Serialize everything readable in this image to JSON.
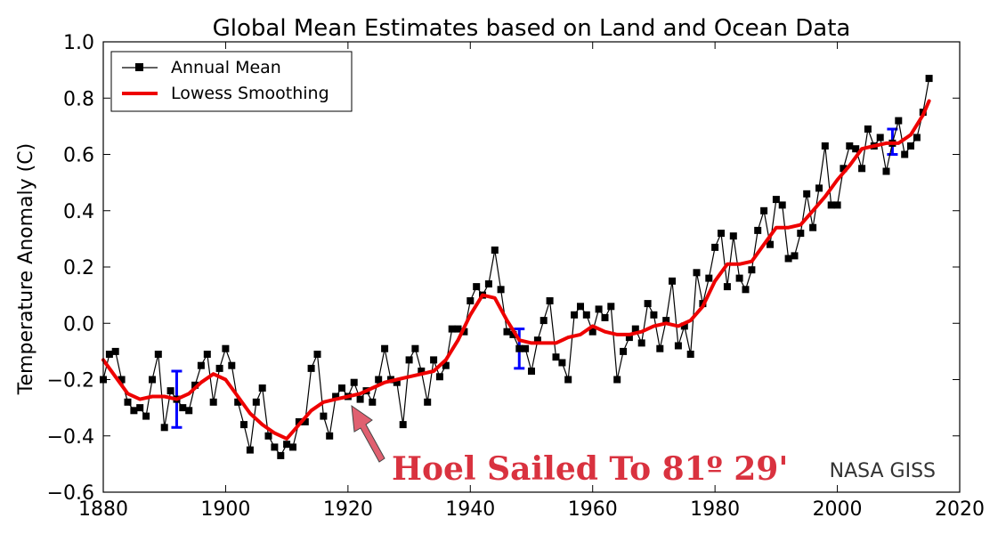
{
  "chart_data": {
    "type": "line",
    "title": "Global Mean Estimates based on Land and Ocean Data",
    "xlabel": "",
    "ylabel": "Temperature Anomaly (C)",
    "xlim": [
      1880,
      2020
    ],
    "ylim": [
      -0.6,
      1.0
    ],
    "x_ticks": [
      1880,
      1900,
      1920,
      1940,
      1960,
      1980,
      2000,
      2020
    ],
    "y_ticks": [
      -0.6,
      -0.4,
      -0.2,
      0.0,
      0.2,
      0.4,
      0.6,
      0.8,
      1.0
    ],
    "x_tick_labels": [
      "1880",
      "1900",
      "1920",
      "1940",
      "1960",
      "1980",
      "2000",
      "2020"
    ],
    "y_tick_labels": [
      "−0.6",
      "−0.4",
      "−0.2",
      "0.0",
      "0.2",
      "0.4",
      "0.6",
      "0.8",
      "1.0"
    ],
    "grid": false,
    "legend_placement": "top-left",
    "series": [
      {
        "name": "Annual Mean",
        "color": "#000000",
        "marker": "square",
        "x": [
          1880,
          1881,
          1882,
          1883,
          1884,
          1885,
          1886,
          1887,
          1888,
          1889,
          1890,
          1891,
          1892,
          1893,
          1894,
          1895,
          1896,
          1897,
          1898,
          1899,
          1900,
          1901,
          1902,
          1903,
          1904,
          1905,
          1906,
          1907,
          1908,
          1909,
          1910,
          1911,
          1912,
          1913,
          1914,
          1915,
          1916,
          1917,
          1918,
          1919,
          1920,
          1921,
          1922,
          1923,
          1924,
          1925,
          1926,
          1927,
          1928,
          1929,
          1930,
          1931,
          1932,
          1933,
          1934,
          1935,
          1936,
          1937,
          1938,
          1939,
          1940,
          1941,
          1942,
          1943,
          1944,
          1945,
          1946,
          1947,
          1948,
          1949,
          1950,
          1951,
          1952,
          1953,
          1954,
          1955,
          1956,
          1957,
          1958,
          1959,
          1960,
          1961,
          1962,
          1963,
          1964,
          1965,
          1966,
          1967,
          1968,
          1969,
          1970,
          1971,
          1972,
          1973,
          1974,
          1975,
          1976,
          1977,
          1978,
          1979,
          1980,
          1981,
          1982,
          1983,
          1984,
          1985,
          1986,
          1987,
          1988,
          1989,
          1990,
          1991,
          1992,
          1993,
          1994,
          1995,
          1996,
          1997,
          1998,
          1999,
          2000,
          2001,
          2002,
          2003,
          2004,
          2005,
          2006,
          2007,
          2008,
          2009,
          2010,
          2011,
          2012,
          2013,
          2014,
          2015
        ],
        "y": [
          -0.2,
          -0.11,
          -0.1,
          -0.2,
          -0.28,
          -0.31,
          -0.3,
          -0.33,
          -0.2,
          -0.11,
          -0.37,
          -0.24,
          -0.27,
          -0.3,
          -0.31,
          -0.22,
          -0.15,
          -0.11,
          -0.28,
          -0.16,
          -0.09,
          -0.15,
          -0.28,
          -0.36,
          -0.45,
          -0.28,
          -0.23,
          -0.4,
          -0.44,
          -0.47,
          -0.43,
          -0.44,
          -0.35,
          -0.35,
          -0.16,
          -0.11,
          -0.33,
          -0.4,
          -0.26,
          -0.23,
          -0.26,
          -0.21,
          -0.27,
          -0.24,
          -0.28,
          -0.2,
          -0.09,
          -0.2,
          -0.21,
          -0.36,
          -0.13,
          -0.09,
          -0.17,
          -0.28,
          -0.13,
          -0.19,
          -0.15,
          -0.02,
          -0.02,
          -0.03,
          0.08,
          0.13,
          0.1,
          0.14,
          0.26,
          0.12,
          -0.03,
          -0.04,
          -0.09,
          -0.09,
          -0.17,
          -0.06,
          0.01,
          0.08,
          -0.12,
          -0.14,
          -0.2,
          0.03,
          0.06,
          0.03,
          -0.03,
          0.05,
          0.02,
          0.06,
          -0.2,
          -0.1,
          -0.05,
          -0.02,
          -0.07,
          0.07,
          0.03,
          -0.09,
          0.01,
          0.15,
          -0.08,
          -0.01,
          -0.11,
          0.18,
          0.07,
          0.16,
          0.27,
          0.32,
          0.13,
          0.31,
          0.16,
          0.12,
          0.19,
          0.33,
          0.4,
          0.28,
          0.44,
          0.42,
          0.23,
          0.24,
          0.32,
          0.46,
          0.34,
          0.48,
          0.63,
          0.42,
          0.42,
          0.55,
          0.63,
          0.62,
          0.55,
          0.69,
          0.63,
          0.66,
          0.54,
          0.64,
          0.72,
          0.6,
          0.63,
          0.66,
          0.75,
          0.87
        ]
      },
      {
        "name": "Lowess Smoothing",
        "color": "#ee0000",
        "x": [
          1880,
          1882,
          1884,
          1886,
          1888,
          1890,
          1892,
          1894,
          1896,
          1898,
          1900,
          1902,
          1904,
          1906,
          1908,
          1910,
          1912,
          1914,
          1916,
          1918,
          1920,
          1922,
          1924,
          1926,
          1928,
          1930,
          1932,
          1934,
          1936,
          1938,
          1940,
          1942,
          1944,
          1946,
          1948,
          1950,
          1952,
          1954,
          1956,
          1958,
          1960,
          1962,
          1964,
          1966,
          1968,
          1970,
          1972,
          1974,
          1976,
          1978,
          1980,
          1982,
          1984,
          1986,
          1988,
          1990,
          1992,
          1994,
          1996,
          1998,
          2000,
          2002,
          2004,
          2006,
          2008,
          2010,
          2012,
          2014,
          2015
        ],
        "y": [
          -0.13,
          -0.19,
          -0.25,
          -0.27,
          -0.26,
          -0.26,
          -0.27,
          -0.25,
          -0.21,
          -0.18,
          -0.2,
          -0.26,
          -0.32,
          -0.36,
          -0.39,
          -0.41,
          -0.36,
          -0.31,
          -0.28,
          -0.27,
          -0.26,
          -0.25,
          -0.23,
          -0.21,
          -0.2,
          -0.19,
          -0.18,
          -0.17,
          -0.13,
          -0.06,
          0.03,
          0.1,
          0.09,
          0.01,
          -0.06,
          -0.07,
          -0.07,
          -0.07,
          -0.05,
          -0.04,
          -0.01,
          -0.03,
          -0.04,
          -0.04,
          -0.03,
          -0.01,
          0.0,
          -0.01,
          0.01,
          0.06,
          0.15,
          0.21,
          0.21,
          0.22,
          0.28,
          0.34,
          0.34,
          0.35,
          0.4,
          0.45,
          0.51,
          0.56,
          0.62,
          0.63,
          0.64,
          0.64,
          0.67,
          0.74,
          0.79
        ]
      }
    ],
    "error_bars": [
      {
        "x": 1892,
        "low": -0.37,
        "high": -0.17,
        "color": "#0000ff"
      },
      {
        "x": 1948,
        "low": -0.16,
        "high": -0.02,
        "color": "#0000ff"
      },
      {
        "x": 2009,
        "low": 0.6,
        "high": 0.69,
        "color": "#0000ff"
      }
    ],
    "annotations": [
      {
        "text": "Hoel Sailed To 81º 29'",
        "color": "#d9323f"
      },
      {
        "text": "NASA GISS",
        "color": "#333333"
      }
    ]
  }
}
